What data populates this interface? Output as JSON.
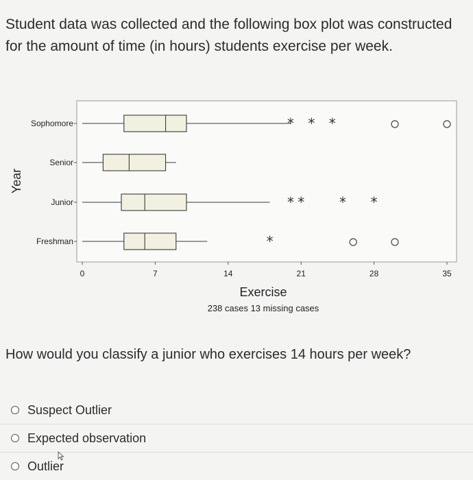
{
  "question": {
    "text": "Student data was collected and the following box plot was constructed for the amount of time (in hours) students exercise per week."
  },
  "prompt": "How would you classify a junior who exercises 14 hours per week?",
  "options": [
    {
      "label": "Suspect Outlier"
    },
    {
      "label": "Expected observation"
    },
    {
      "label": "Outlier"
    }
  ],
  "chart_data": {
    "type": "boxplot",
    "orientation": "horizontal",
    "xlabel": "Exercise",
    "ylabel": "Year",
    "caption": "238 cases  13 missing cases",
    "xlim": [
      0,
      35
    ],
    "xticks": [
      0,
      7,
      14,
      21,
      28,
      35
    ],
    "xtick_labels": [
      "0",
      "7",
      "14",
      "21",
      "28",
      "35"
    ],
    "categories": [
      "Sophomore",
      "Senior",
      "Junior",
      "Freshman"
    ],
    "series": [
      {
        "name": "Sophomore",
        "min": 0,
        "q1": 4,
        "median": 8,
        "q3": 10,
        "max": 20,
        "suspect_outliers": [
          20,
          22,
          24
        ],
        "outliers": [
          30,
          35
        ]
      },
      {
        "name": "Senior",
        "min": 0,
        "q1": 2,
        "median": 4.5,
        "q3": 8,
        "max": 9,
        "suspect_outliers": [],
        "outliers": []
      },
      {
        "name": "Junior",
        "min": 0,
        "q1": 3.75,
        "median": 6,
        "q3": 10,
        "max": 18,
        "suspect_outliers": [
          20,
          21,
          25,
          28
        ],
        "outliers": []
      },
      {
        "name": "Freshman",
        "min": 0,
        "q1": 4,
        "median": 6,
        "q3": 9,
        "max": 12,
        "suspect_outliers": [
          18
        ],
        "outliers": [
          26,
          30
        ]
      }
    ],
    "grid": false,
    "colors": {
      "box_fill": "#f2f0e0",
      "box_stroke": "#3a3a3a",
      "frame": "#9a9a9a"
    }
  }
}
